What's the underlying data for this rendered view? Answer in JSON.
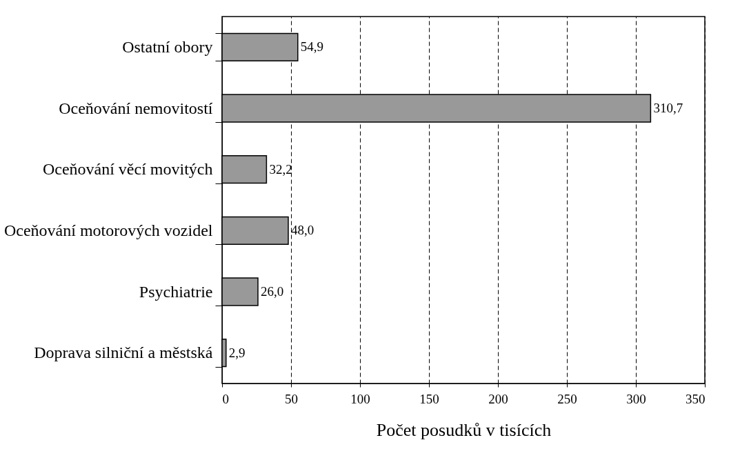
{
  "chart_data": {
    "type": "bar",
    "orientation": "horizontal",
    "xlabel": "Počet posudků v tisících",
    "categories": [
      "Ostatní obory",
      "Oceňování nemovitostí",
      "Oceňování věcí movitých",
      "Oceňování motorových vozidel",
      "Psychiatrie",
      "Doprava silniční a městská"
    ],
    "values": [
      54.9,
      310.7,
      32.2,
      48.0,
      26.0,
      2.9
    ],
    "value_labels": [
      "54,9",
      "310,7",
      "32,2",
      "48,0",
      "26,0",
      "2,9"
    ],
    "color": "#999999",
    "xlim": [
      0,
      350
    ],
    "xticks": [
      0,
      50,
      100,
      150,
      200,
      250,
      300,
      350
    ],
    "grid": "x",
    "line_style": "dashed"
  }
}
